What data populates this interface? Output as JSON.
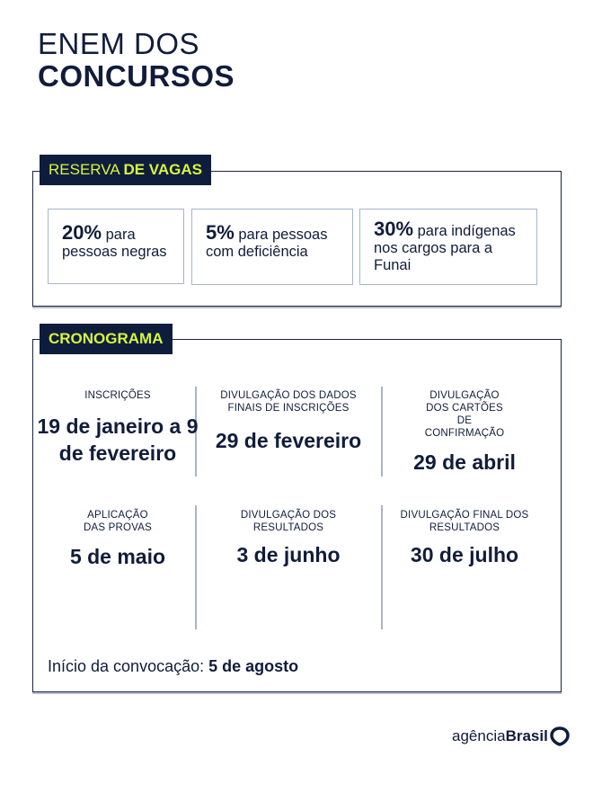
{
  "title": {
    "line1": "ENEM DOS",
    "line2": "CONCURSOS"
  },
  "reserva": {
    "tag_light": "RESERVA ",
    "tag_bold": "DE VAGAS",
    "cards": [
      {
        "pct": "20%",
        "text": " para pessoas negras"
      },
      {
        "pct": "5%",
        "text": " para pessoas com deficiência"
      },
      {
        "pct": "30%",
        "text": " para indígenas nos cargos para a Funai"
      }
    ]
  },
  "cronograma": {
    "tag": "CRONOGRAMA",
    "items": [
      {
        "label": "INSCRIÇÕES",
        "value": "19 de janeiro a 9 de fevereiro"
      },
      {
        "label": "DIVULGAÇÃO DOS DADOS FINAIS DE INSCRIÇÕES",
        "value": "29 de fevereiro"
      },
      {
        "label": "DIVULGAÇÃO DOS CARTÕES DE CONFIRMAÇÃO",
        "value": "29 de abril"
      },
      {
        "label": "APLICAÇÃO DAS PROVAS",
        "value": "5 de maio"
      },
      {
        "label": "DIVULGAÇÃO DOS RESULTADOS",
        "value": "3 de junho"
      },
      {
        "label": "DIVULGAÇÃO FINAL DOS RESULTADOS",
        "value": "30 de julho"
      }
    ],
    "footer_text": "Início da convocação: ",
    "footer_bold": "5 de agosto"
  },
  "logo": {
    "light": "agência",
    "bold": "Brasil"
  },
  "colors": {
    "navy": "#0f1d3d",
    "lime": "#d8f53c",
    "card_border": "#a8b4cc"
  }
}
